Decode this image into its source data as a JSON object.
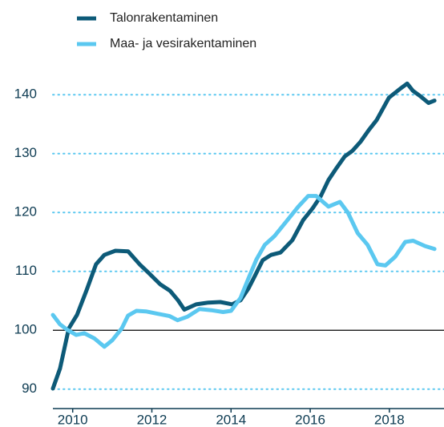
{
  "chart_data": {
    "type": "line",
    "ylim": [
      86.7,
      145.2
    ],
    "yticks": [
      90,
      100,
      110,
      120,
      130,
      140
    ],
    "xlim": [
      2009.5,
      2019.38
    ],
    "xticks": [
      2010,
      2012,
      2014,
      2016,
      2018
    ],
    "grid": true,
    "grid_color": "#5bc8f0",
    "hline": 100,
    "legend": "top-left",
    "series": [
      {
        "name": "Talonrakentaminen",
        "color": "#0d5a78",
        "x": [
          2009.5,
          2009.68,
          2009.9,
          2010.11,
          2010.35,
          2010.59,
          2010.8,
          2011.08,
          2011.4,
          2011.69,
          2011.91,
          2012.21,
          2012.46,
          2012.66,
          2012.82,
          2013.12,
          2013.43,
          2013.73,
          2014.03,
          2014.24,
          2014.44,
          2014.6,
          2014.8,
          2015.01,
          2015.25,
          2015.55,
          2015.82,
          2016.06,
          2016.26,
          2016.46,
          2016.67,
          2016.87,
          2017.07,
          2017.27,
          2017.48,
          2017.68,
          2017.99,
          2018.29,
          2018.45,
          2018.59,
          2018.79,
          2018.99,
          2019.14
        ],
        "values": [
          90.1,
          93.5,
          100.3,
          102.6,
          106.8,
          111.2,
          112.8,
          113.5,
          113.4,
          111.2,
          109.8,
          107.8,
          106.7,
          105.1,
          103.5,
          104.4,
          104.7,
          104.8,
          104.4,
          105.1,
          107.1,
          109.2,
          111.9,
          112.8,
          113.2,
          115.3,
          118.7,
          120.7,
          122.7,
          125.5,
          127.6,
          129.5,
          130.5,
          132,
          134,
          135.7,
          139.5,
          141.1,
          141.9,
          140.7,
          139.7,
          138.6,
          139
        ]
      },
      {
        "name": "Maa- ja vesirakentaminen",
        "color": "#5bc8f0",
        "x": [
          2009.5,
          2009.68,
          2009.88,
          2010.09,
          2010.29,
          2010.55,
          2010.8,
          2011.0,
          2011.24,
          2011.4,
          2011.61,
          2011.85,
          2012.15,
          2012.45,
          2012.65,
          2012.9,
          2013.2,
          2013.5,
          2013.8,
          2014.0,
          2014.24,
          2014.44,
          2014.64,
          2014.85,
          2015.1,
          2015.4,
          2015.7,
          2015.95,
          2016.15,
          2016.46,
          2016.75,
          2016.95,
          2017.2,
          2017.45,
          2017.7,
          2017.9,
          2018.15,
          2018.4,
          2018.6,
          2018.9,
          2019.14
        ],
        "values": [
          102.6,
          101,
          100,
          99.2,
          99.5,
          98.6,
          97.2,
          98.3,
          100.3,
          102.5,
          103.3,
          103.2,
          102.8,
          102.4,
          101.7,
          102.3,
          103.6,
          103.4,
          103.1,
          103.3,
          105.5,
          108.8,
          112,
          114.5,
          116,
          118.5,
          121,
          122.8,
          122.8,
          121,
          121.8,
          120,
          116.5,
          114.5,
          111.2,
          111,
          112.5,
          115,
          115.2,
          114.3,
          113.8
        ]
      }
    ]
  }
}
